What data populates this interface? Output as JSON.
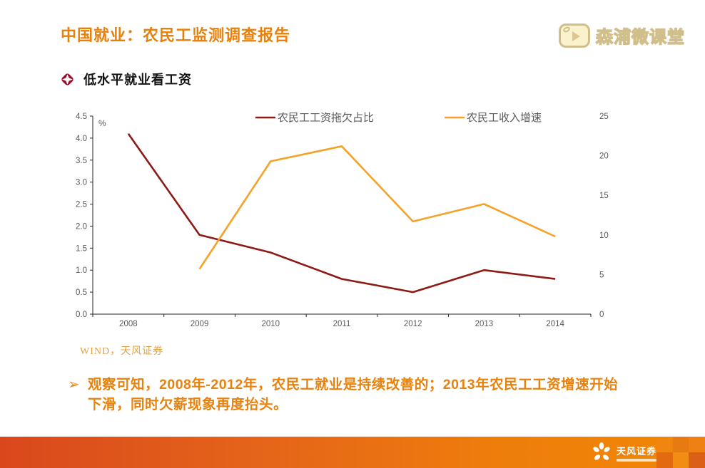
{
  "header": {
    "title": "中国就业：农民工监测调查报告",
    "watermark_label": "森浦微课堂"
  },
  "section": {
    "title": "低水平就业看工资"
  },
  "chart_data": {
    "type": "line",
    "title": "",
    "categories": [
      "2008",
      "2009",
      "2010",
      "2011",
      "2012",
      "2013",
      "2014"
    ],
    "series": [
      {
        "name": "农民工工资拖欠占比",
        "axis": "left",
        "color": "#8e1a16",
        "values": [
          4.1,
          1.8,
          1.4,
          0.8,
          0.5,
          1.0,
          0.8
        ]
      },
      {
        "name": "农民工收入增速",
        "axis": "right",
        "color": "#f5a228",
        "values": [
          null,
          5.7,
          19.3,
          21.2,
          11.7,
          13.9,
          9.8
        ]
      }
    ],
    "left_axis": {
      "label": "%",
      "min": 0,
      "max": 4.5,
      "step": 0.5,
      "decimals": 1
    },
    "right_axis": {
      "label": "",
      "min": 0,
      "max": 25,
      "step": 5,
      "decimals": 0
    },
    "legend_position": "top",
    "grid": false,
    "axis_text_color": "#595959",
    "axis_line_color": "#262626"
  },
  "source": "WIND，天风证券",
  "commentary": {
    "bullet": "➢",
    "text": "观察可知，2008年-2012年，农民工就业是持续改善的；2013年农民工工资增速开始下滑，同时欠薪现象再度抬头。"
  },
  "footer": {
    "brand": "天风证券",
    "checker_colors": [
      "#f0850f",
      "#e87a12",
      "#ee8014",
      "#e26a10",
      "#f18d13",
      "#da5f17"
    ]
  }
}
